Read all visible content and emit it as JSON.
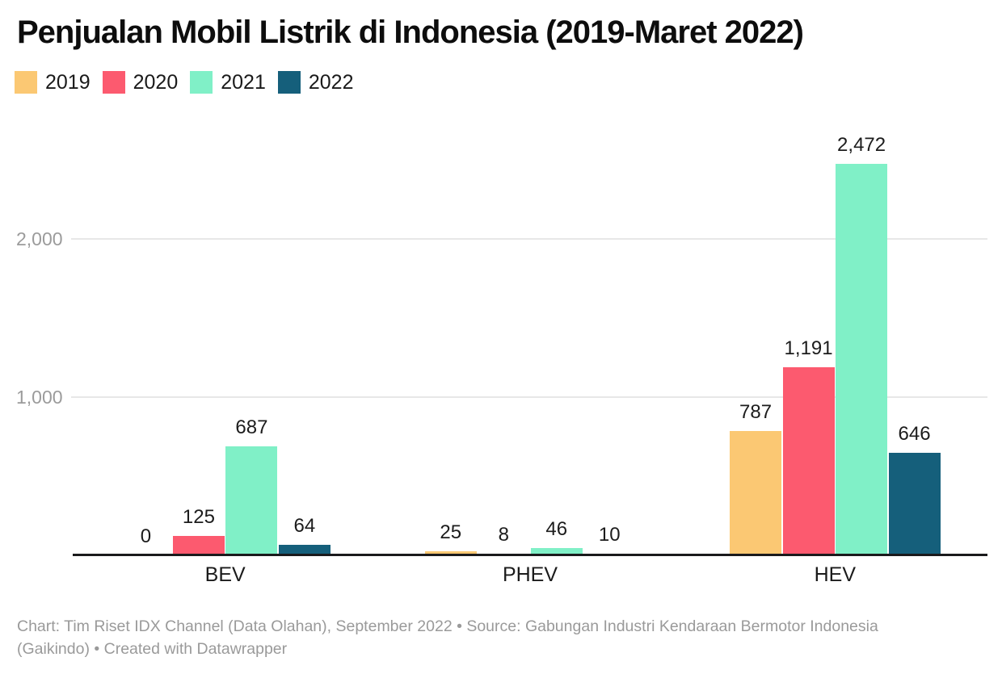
{
  "title": "Penjualan Mobil Listrik di Indonesia (2019-Maret 2022)",
  "chart_data": {
    "type": "bar",
    "title": "Penjualan Mobil Listrik di Indonesia (2019-Maret 2022)",
    "categories": [
      "BEV",
      "PHEV",
      "HEV"
    ],
    "series": [
      {
        "name": "2019",
        "color": "#FBC873",
        "values": [
          0,
          25,
          787
        ]
      },
      {
        "name": "2020",
        "color": "#FC5A6F",
        "values": [
          125,
          8,
          1191
        ]
      },
      {
        "name": "2021",
        "color": "#80F0C7",
        "values": [
          687,
          46,
          2472
        ]
      },
      {
        "name": "2022",
        "color": "#155F7B",
        "values": [
          64,
          10,
          646
        ]
      }
    ],
    "yticks": [
      {
        "value": 1000,
        "label": "1,000"
      },
      {
        "value": 2000,
        "label": "2,000"
      }
    ],
    "ylim": [
      0,
      2750
    ],
    "grid": true,
    "legend_position": "top",
    "value_labels": true,
    "xlabel": "",
    "ylabel": ""
  },
  "footer": {
    "text": "Chart: Tim Riset IDX Channel (Data Olahan), September 2022 • Source: Gabungan Industri Kendaraan Bermotor Indonesia (Gaikindo) • Created with Datawrapper"
  }
}
